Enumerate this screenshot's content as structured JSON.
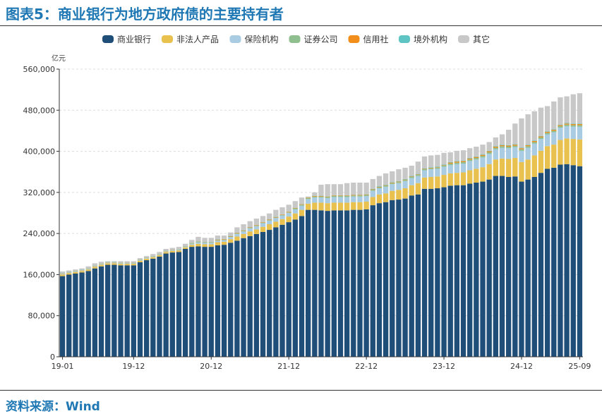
{
  "figure_title": "图表5：商业银行为地方政府债的主要持有者",
  "source": "资料来源：Wind",
  "chart_data": {
    "type": "bar",
    "stacked": true,
    "unit_label": "亿元",
    "ylim": [
      0,
      560000
    ],
    "yticks": [
      0,
      80000,
      160000,
      240000,
      320000,
      400000,
      480000,
      560000
    ],
    "ytick_labels": [
      "0",
      "80,000",
      "160,000",
      "240,000",
      "320,000",
      "400,000",
      "480,000",
      "560,000"
    ],
    "x_tick_labels": [
      {
        "label": "19-01",
        "index": 0
      },
      {
        "label": "19-12",
        "index": 11
      },
      {
        "label": "20-12",
        "index": 23
      },
      {
        "label": "21-12",
        "index": 35
      },
      {
        "label": "22-12",
        "index": 47
      },
      {
        "label": "23-12",
        "index": 59
      },
      {
        "label": "24-12",
        "index": 71
      },
      {
        "label": "25-09",
        "index": 80
      }
    ],
    "categories": [
      "19-01",
      "19-02",
      "19-03",
      "19-04",
      "19-05",
      "19-06",
      "19-07",
      "19-08",
      "19-09",
      "19-10",
      "19-11",
      "19-12",
      "20-01",
      "20-02",
      "20-03",
      "20-04",
      "20-05",
      "20-06",
      "20-07",
      "20-08",
      "20-09",
      "20-10",
      "20-11",
      "20-12",
      "21-01",
      "21-02",
      "21-03",
      "21-04",
      "21-05",
      "21-06",
      "21-07",
      "21-08",
      "21-09",
      "21-10",
      "21-11",
      "21-12",
      "22-01",
      "22-02",
      "22-03",
      "22-04",
      "22-05",
      "22-06",
      "22-07",
      "22-08",
      "22-09",
      "22-10",
      "22-11",
      "22-12",
      "23-01",
      "23-02",
      "23-03",
      "23-04",
      "23-05",
      "23-06",
      "23-07",
      "23-08",
      "23-09",
      "23-10",
      "23-11",
      "23-12",
      "24-01",
      "24-02",
      "24-03",
      "24-04",
      "24-05",
      "24-06",
      "24-07",
      "24-08",
      "24-09",
      "24-10",
      "24-11",
      "24-12",
      "25-01",
      "25-02",
      "25-03",
      "25-04",
      "25-05",
      "25-06",
      "25-07",
      "25-08",
      "25-09"
    ],
    "totals": [
      166000,
      168000,
      170000,
      172000,
      176000,
      182000,
      185000,
      186000,
      186000,
      186000,
      186000,
      186000,
      192000,
      196000,
      200000,
      204000,
      210000,
      212000,
      214000,
      220000,
      228000,
      233000,
      232000,
      232000,
      236000,
      236000,
      242000,
      252000,
      258000,
      264000,
      269000,
      274000,
      280000,
      286000,
      291000,
      296000,
      303000,
      310000,
      312000,
      320000,
      335000,
      336000,
      336000,
      336000,
      338000,
      339000,
      339000,
      339000,
      346000,
      352000,
      357000,
      361000,
      365000,
      368000,
      372000,
      380000,
      390000,
      392000,
      393000,
      396000,
      398000,
      401000,
      402000,
      406000,
      409000,
      413000,
      418000,
      427000,
      433000,
      442000,
      454000,
      464000,
      472000,
      478000,
      485000,
      488000,
      497000,
      505000,
      507000,
      511000,
      513000
    ],
    "series": [
      {
        "name": "商业银行",
        "color": "#1f4e79",
        "values": [
          157000,
          160000,
          162000,
          164000,
          167000,
          172000,
          176000,
          179000,
          179000,
          178000,
          178000,
          178000,
          184000,
          188000,
          191000,
          195000,
          201000,
          203000,
          204000,
          210000,
          214000,
          215000,
          214000,
          214000,
          217000,
          218000,
          222000,
          226000,
          231000,
          235000,
          239000,
          243000,
          247000,
          252000,
          257000,
          262000,
          267000,
          274000,
          286000,
          286000,
          285000,
          284000,
          285000,
          285000,
          285000,
          286000,
          286000,
          287000,
          295000,
          299000,
          301000,
          305000,
          306000,
          308000,
          314000,
          316000,
          327000,
          327000,
          328000,
          330000,
          333000,
          334000,
          334000,
          337000,
          339000,
          341000,
          345000,
          352000,
          352000,
          350000,
          351000,
          341000,
          345000,
          350000,
          358000,
          366000,
          368000,
          374000,
          375000,
          373000,
          371000
        ]
      },
      {
        "name": "非法人产品",
        "color": "#e8c14e",
        "values": [
          3000,
          3000,
          3000,
          3000,
          3000,
          3000,
          3000,
          3000,
          3000,
          3000,
          3000,
          3000,
          3000,
          3000,
          3000,
          3000,
          3000,
          3000,
          3000,
          3000,
          4000,
          5000,
          5000,
          5000,
          6000,
          6000,
          7000,
          8000,
          8000,
          9000,
          9000,
          10000,
          11000,
          11000,
          11000,
          11000,
          12000,
          12000,
          12000,
          14000,
          15000,
          15000,
          15000,
          15000,
          15000,
          15000,
          15000,
          15000,
          16000,
          17000,
          17000,
          18000,
          19000,
          20000,
          20000,
          22000,
          22000,
          23000,
          23000,
          24000,
          24000,
          24000,
          25000,
          26000,
          27000,
          28000,
          30000,
          32000,
          34000,
          35000,
          36000,
          38000,
          39000,
          42000,
          43000,
          44000,
          45000,
          48000,
          50000,
          51000,
          52000
        ]
      },
      {
        "name": "保险机构",
        "color": "#a9cce3",
        "values": [
          1000,
          1000,
          1000,
          1000,
          1000,
          1000,
          1000,
          1000,
          1000,
          1000,
          1000,
          1000,
          1000,
          1000,
          1000,
          1000,
          1000,
          1000,
          1000,
          1000,
          2000,
          3000,
          3000,
          3000,
          3000,
          3000,
          4000,
          5000,
          5000,
          6000,
          6000,
          7000,
          7000,
          7000,
          7000,
          7000,
          8000,
          8000,
          9000,
          10000,
          10000,
          10000,
          11000,
          11000,
          11000,
          11000,
          11000,
          11000,
          12000,
          12000,
          13000,
          13000,
          13000,
          14000,
          14000,
          14000,
          14000,
          15000,
          15000,
          16000,
          16000,
          17000,
          17000,
          18000,
          18000,
          19000,
          20000,
          20000,
          21000,
          21000,
          21000,
          22000,
          23000,
          23000,
          23000,
          23000,
          24000,
          24000,
          24000,
          24000,
          25000
        ]
      },
      {
        "name": "证券公司",
        "color": "#8fbf8f",
        "values": [
          500,
          500,
          500,
          500,
          500,
          500,
          500,
          500,
          500,
          500,
          500,
          500,
          500,
          500,
          500,
          500,
          500,
          500,
          500,
          500,
          1000,
          1000,
          1000,
          1000,
          1000,
          1000,
          1000,
          1000,
          1000,
          1000,
          1000,
          1000,
          1000,
          1000,
          1000,
          1000,
          2000,
          2000,
          2000,
          2000,
          2000,
          2000,
          2000,
          2000,
          2000,
          2000,
          2000,
          2000,
          2000,
          2000,
          2000,
          2000,
          2000,
          2000,
          2000,
          2000,
          2000,
          2000,
          2000,
          2000,
          3000,
          3000,
          3000,
          3000,
          3000,
          3000,
          3000,
          3000,
          3000,
          3000,
          3000,
          3000,
          3000,
          3000,
          3000,
          3000,
          3000,
          3000,
          3000,
          3000,
          3000
        ]
      },
      {
        "name": "信用社",
        "color": "#f28e1c",
        "values": [
          500,
          500,
          500,
          500,
          500,
          500,
          500,
          500,
          500,
          500,
          500,
          500,
          500,
          500,
          500,
          500,
          500,
          500,
          500,
          500,
          500,
          500,
          500,
          500,
          1000,
          1000,
          1000,
          1000,
          1000,
          1000,
          1000,
          1000,
          1000,
          1000,
          1000,
          1000,
          1000,
          1000,
          1000,
          1000,
          1000,
          1000,
          1000,
          1000,
          1000,
          1000,
          1000,
          1000,
          1000,
          1000,
          1000,
          1000,
          1000,
          1000,
          1000,
          1000,
          1000,
          1000,
          1000,
          1000,
          2000,
          2000,
          2000,
          2000,
          2000,
          2000,
          2000,
          2000,
          2000,
          2000,
          2000,
          2000,
          2000,
          2000,
          2000,
          2000,
          2000,
          2000,
          2000,
          2000,
          2000
        ]
      },
      {
        "name": "境外机构",
        "color": "#5ec4c4",
        "values": [
          500,
          500,
          500,
          500,
          500,
          500,
          500,
          500,
          500,
          500,
          500,
          500,
          500,
          500,
          500,
          500,
          500,
          500,
          500,
          500,
          500,
          500,
          500,
          500,
          500,
          500,
          500,
          500,
          500,
          500,
          500,
          500,
          500,
          500,
          500,
          500,
          500,
          500,
          500,
          500,
          500,
          500,
          500,
          500,
          500,
          500,
          500,
          500,
          1000,
          1000,
          1000,
          1000,
          1000,
          1000,
          1000,
          1000,
          1000,
          1000,
          1000,
          1000,
          1000,
          1000,
          1000,
          1000,
          1000,
          1000,
          1000,
          1000,
          1000,
          1000,
          1000,
          1000,
          1000,
          1000,
          1000,
          1000,
          1000,
          1000,
          1000,
          1000,
          1000
        ]
      },
      {
        "name": "其它",
        "color": "#c8c8c8",
        "values": [
          3500,
          2500,
          2500,
          2500,
          3500,
          4500,
          3500,
          1500,
          1500,
          2500,
          2500,
          2500,
          2500,
          2500,
          3500,
          3500,
          3500,
          3500,
          4500,
          4500,
          5500,
          8500,
          7500,
          7500,
          7500,
          6500,
          6500,
          10500,
          11500,
          11500,
          12500,
          11500,
          11500,
          13500,
          13500,
          13500,
          12500,
          12500,
          1500,
          6500,
          21500,
          23500,
          21500,
          21500,
          23500,
          23500,
          23500,
          22500,
          19000,
          20000,
          22000,
          21000,
          23000,
          22000,
          20000,
          24000,
          23000,
          23000,
          23000,
          23000,
          19000,
          20000,
          20000,
          19000,
          19000,
          19000,
          17000,
          17000,
          20000,
          30000,
          40000,
          57000,
          59000,
          57000,
          55000,
          49000,
          54000,
          53000,
          52000,
          57000,
          59000
        ]
      }
    ]
  }
}
